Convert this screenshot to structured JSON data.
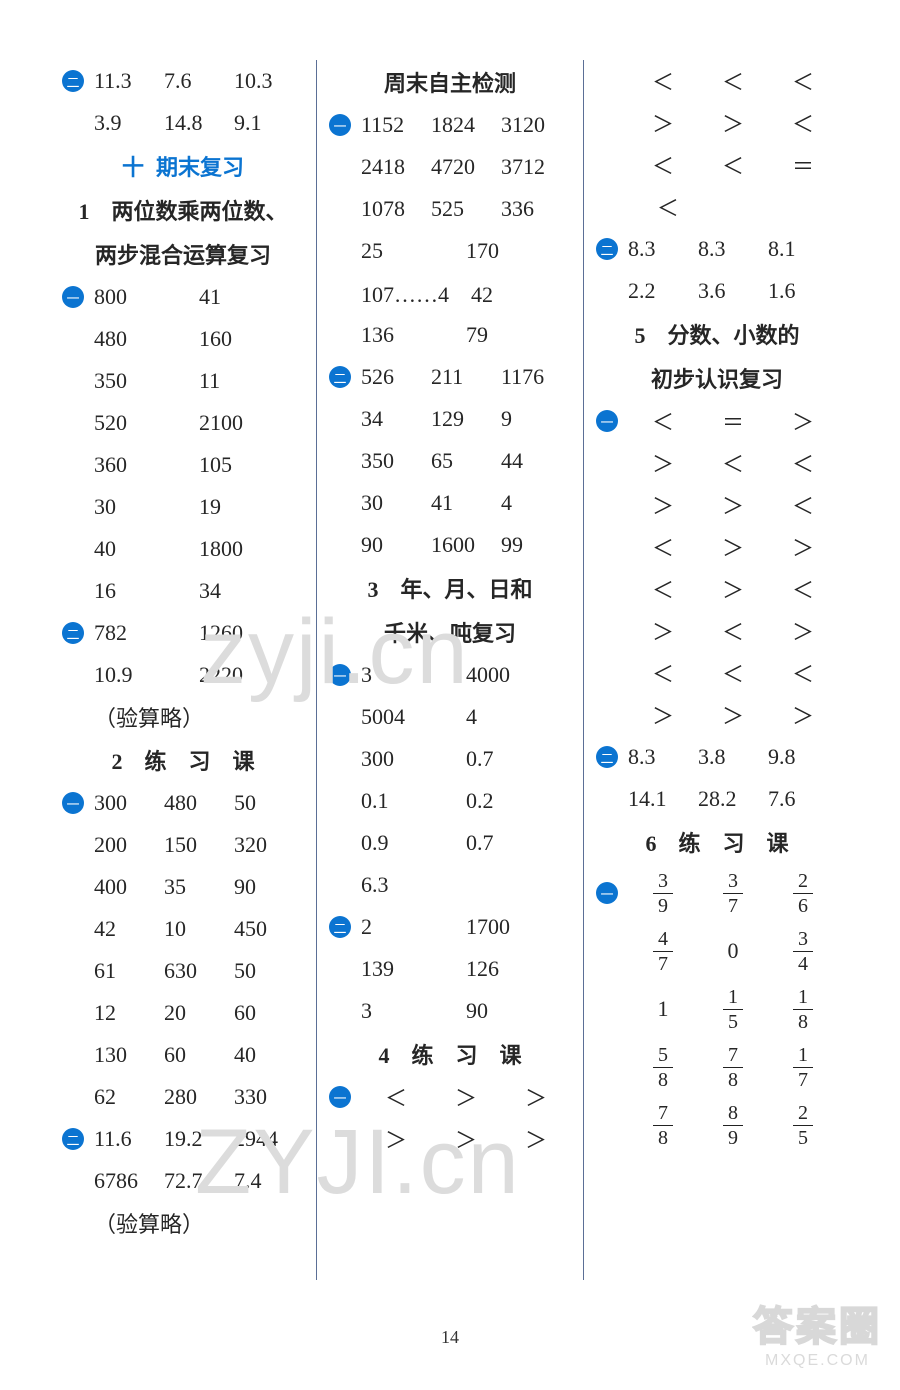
{
  "page_number": "14",
  "watermarks": {
    "w1": "zyji.cn",
    "w2": "ZYJI.cn"
  },
  "corner_logo": {
    "title": "答案圈",
    "site": "MXQE.COM"
  },
  "col1": {
    "s1_bullet": "二",
    "s1_row1": [
      "11.3",
      "7.6",
      "10.3"
    ],
    "s1_row2": [
      "3.9",
      "14.8",
      "9.1"
    ],
    "section_ten_label_a": "十",
    "section_ten_label_b": "期末复习",
    "sec1_line1": "1　两位数乘两位数、",
    "sec1_line2": "两步混合运算复习",
    "s2_bullet": "一",
    "s2_rows": [
      [
        "800",
        "41"
      ],
      [
        "480",
        "160"
      ],
      [
        "350",
        "11"
      ],
      [
        "520",
        "2100"
      ],
      [
        "360",
        "105"
      ],
      [
        "30",
        "19"
      ],
      [
        "40",
        "1800"
      ],
      [
        "16",
        "34"
      ]
    ],
    "s3_bullet": "二",
    "s3_rows": [
      [
        "782",
        "1260"
      ],
      [
        "10.9",
        "2220"
      ]
    ],
    "s3_note": "（验算略）",
    "sec2_title": "2　练　习　课",
    "s4_bullet": "一",
    "s4_rows": [
      [
        "300",
        "480",
        "50"
      ],
      [
        "200",
        "150",
        "320"
      ],
      [
        "400",
        "35",
        "90"
      ],
      [
        "42",
        "10",
        "450"
      ],
      [
        "61",
        "630",
        "50"
      ],
      [
        "12",
        "20",
        "60"
      ],
      [
        "130",
        "60",
        "40"
      ],
      [
        "62",
        "280",
        "330"
      ]
    ],
    "s5_bullet": "二",
    "s5_rows": [
      [
        "11.6",
        "19.2",
        "2944"
      ],
      [
        "6786",
        "72.7",
        "7.4"
      ]
    ],
    "s5_note": "（验算略）"
  },
  "col2": {
    "sec_weekend": "周末自主检测",
    "s1_bullet": "一",
    "s1_rows": [
      [
        "1152",
        "1824",
        "3120"
      ],
      [
        "2418",
        "4720",
        "3712"
      ],
      [
        "1078",
        "525",
        "336"
      ]
    ],
    "s1_extra1": [
      "25",
      "170"
    ],
    "s1_extra2": "107……4　42",
    "s1_extra3": [
      "136",
      "79"
    ],
    "s2_bullet": "二",
    "s2_rows": [
      [
        "526",
        "211",
        "1176"
      ],
      [
        "34",
        "129",
        "9"
      ],
      [
        "350",
        "65",
        "44"
      ],
      [
        "30",
        "41",
        "4"
      ],
      [
        "90",
        "1600",
        "99"
      ]
    ],
    "sec3_line1": "3　年、月、日和",
    "sec3_line2": "千米、吨复习",
    "s3_bullet": "一",
    "s3_rows": [
      [
        "3",
        "4000"
      ],
      [
        "5004",
        "4"
      ],
      [
        "300",
        "0.7"
      ],
      [
        "0.1",
        "0.2"
      ],
      [
        "0.9",
        "0.7"
      ]
    ],
    "s3_tail": "6.3",
    "s4_bullet": "二",
    "s4_rows": [
      [
        "2",
        "1700"
      ],
      [
        "139",
        "126"
      ],
      [
        "3",
        "90"
      ]
    ],
    "sec4_title": "4　练　习　课",
    "s5_bullet": "一",
    "s5_rows": [
      [
        "＜",
        "＞",
        "＞"
      ],
      [
        "＞",
        "＞",
        "＞"
      ]
    ]
  },
  "col3": {
    "s1_rows": [
      [
        "＜",
        "＜",
        "＜"
      ],
      [
        "＞",
        "＞",
        "＜"
      ],
      [
        "＜",
        "＜",
        "＝"
      ]
    ],
    "s1_tail": "＜",
    "s2_bullet": "二",
    "s2_rows": [
      [
        "8.3",
        "8.3",
        "8.1"
      ],
      [
        "2.2",
        "3.6",
        "1.6"
      ]
    ],
    "sec5_line1": "5　分数、小数的",
    "sec5_line2": "初步认识复习",
    "s3_bullet": "一",
    "s3_rows": [
      [
        "＜",
        "＝",
        "＞"
      ],
      [
        "＞",
        "＜",
        "＜"
      ],
      [
        "＞",
        "＞",
        "＜"
      ],
      [
        "＜",
        "＞",
        "＞"
      ],
      [
        "＜",
        "＞",
        "＜"
      ],
      [
        "＞",
        "＜",
        "＞"
      ],
      [
        "＜",
        "＜",
        "＜"
      ],
      [
        "＞",
        "＞",
        "＞"
      ]
    ],
    "s4_bullet": "二",
    "s4_rows": [
      [
        "8.3",
        "3.8",
        "9.8"
      ],
      [
        "14.1",
        "28.2",
        "7.6"
      ]
    ],
    "sec6_title": "6　练　习　课",
    "s5_bullet": "一",
    "s5_fracs": [
      [
        [
          "3",
          "9"
        ],
        [
          "3",
          "7"
        ],
        [
          "2",
          "6"
        ]
      ],
      [
        [
          "4",
          "7"
        ],
        [
          "0",
          ""
        ],
        [
          "3",
          "4"
        ]
      ],
      [
        [
          "1",
          ""
        ],
        [
          "1",
          "5"
        ],
        [
          "1",
          "8"
        ]
      ],
      [
        [
          "5",
          "8"
        ],
        [
          "7",
          "8"
        ],
        [
          "1",
          "7"
        ]
      ],
      [
        [
          "7",
          "8"
        ],
        [
          "8",
          "9"
        ],
        [
          "2",
          "5"
        ]
      ]
    ]
  }
}
